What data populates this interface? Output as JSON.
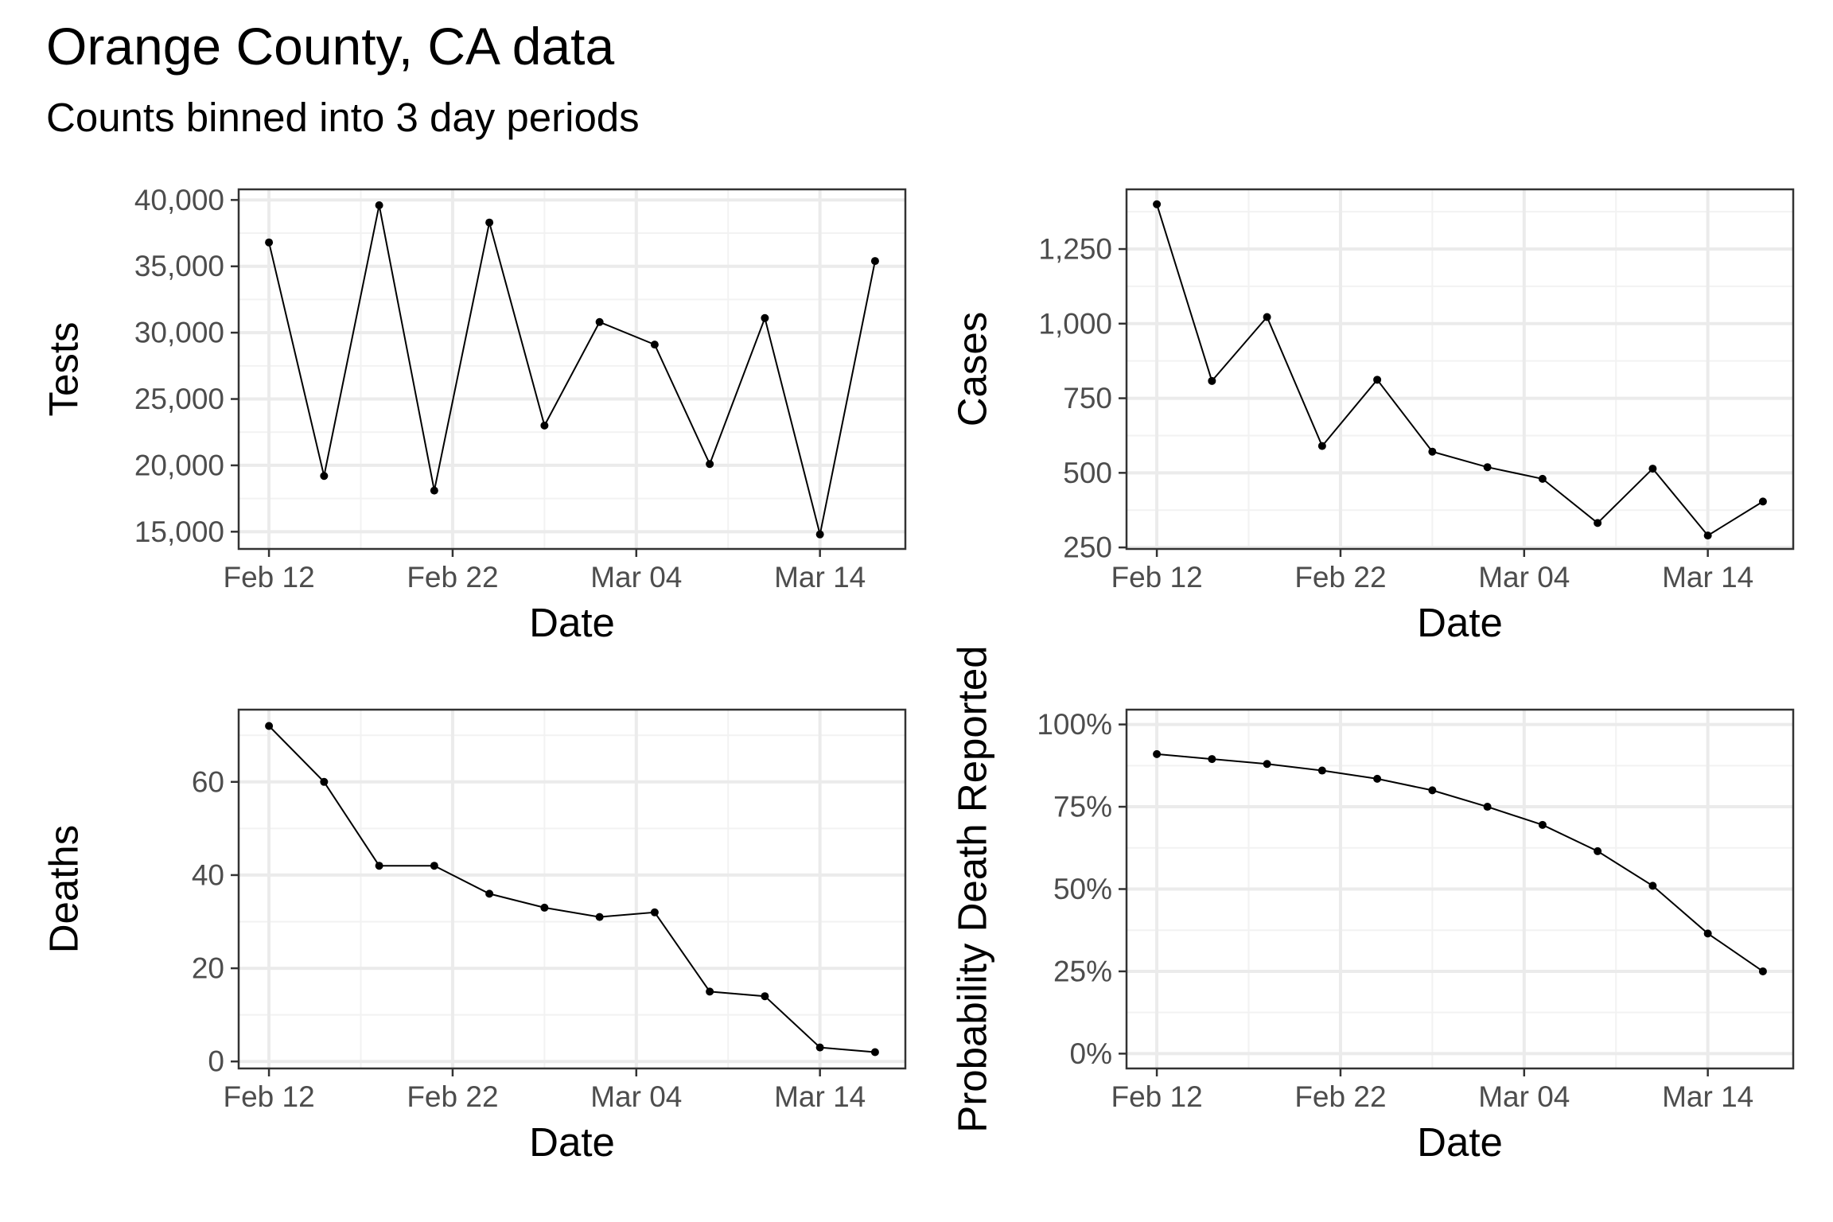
{
  "title": "Orange County, CA data",
  "subtitle": "Counts binned into 3 day periods",
  "chart_data": [
    {
      "type": "line",
      "xlabel": "Date",
      "ylabel": "Tests",
      "x": [
        "2021-02-12",
        "2021-02-15",
        "2021-02-18",
        "2021-02-21",
        "2021-02-24",
        "2021-02-27",
        "2021-03-02",
        "2021-03-05",
        "2021-03-08",
        "2021-03-11",
        "2021-03-14",
        "2021-03-17"
      ],
      "values": [
        36800,
        19200,
        39600,
        18100,
        38300,
        23000,
        30800,
        29100,
        20100,
        31100,
        14800,
        35400
      ],
      "ylim": [
        13700,
        40800
      ],
      "y_ticks": [
        15000,
        20000,
        25000,
        30000,
        35000,
        40000
      ],
      "y_tick_labels": [
        "15,000",
        "20,000",
        "25,000",
        "30,000",
        "35,000",
        "40,000"
      ],
      "x_ticks": [
        "2021-02-12",
        "2021-02-22",
        "2021-03-04",
        "2021-03-14"
      ],
      "x_tick_labels": [
        "Feb 12",
        "Feb 22",
        "Mar 04",
        "Mar 14"
      ],
      "grid": true
    },
    {
      "type": "line",
      "xlabel": "Date",
      "ylabel": "Cases",
      "x": [
        "2021-02-12",
        "2021-02-15",
        "2021-02-18",
        "2021-02-21",
        "2021-02-24",
        "2021-02-27",
        "2021-03-02",
        "2021-03-05",
        "2021-03-08",
        "2021-03-11",
        "2021-03-14",
        "2021-03-17"
      ],
      "values": [
        1400,
        808,
        1022,
        590,
        812,
        571,
        519,
        480,
        332,
        514,
        290,
        404
      ],
      "ylim": [
        245,
        1450
      ],
      "y_ticks": [
        250,
        500,
        750,
        1000,
        1250
      ],
      "y_tick_labels": [
        "250",
        "500",
        "750",
        "1,000",
        "1,250"
      ],
      "x_ticks": [
        "2021-02-12",
        "2021-02-22",
        "2021-03-04",
        "2021-03-14"
      ],
      "x_tick_labels": [
        "Feb 12",
        "Feb 22",
        "Mar 04",
        "Mar 14"
      ],
      "grid": true
    },
    {
      "type": "line",
      "xlabel": "Date",
      "ylabel": "Deaths",
      "x": [
        "2021-02-12",
        "2021-02-15",
        "2021-02-18",
        "2021-02-21",
        "2021-02-24",
        "2021-02-27",
        "2021-03-02",
        "2021-03-05",
        "2021-03-08",
        "2021-03-11",
        "2021-03-14",
        "2021-03-17"
      ],
      "values": [
        72,
        60,
        42,
        42,
        36,
        33,
        31,
        32,
        15,
        14,
        3,
        2
      ],
      "ylim": [
        -1.5,
        75.5
      ],
      "y_ticks": [
        0,
        20,
        40,
        60
      ],
      "y_tick_labels": [
        "0",
        "20",
        "40",
        "60"
      ],
      "x_ticks": [
        "2021-02-12",
        "2021-02-22",
        "2021-03-04",
        "2021-03-14"
      ],
      "x_tick_labels": [
        "Feb 12",
        "Feb 22",
        "Mar 04",
        "Mar 14"
      ],
      "grid": true
    },
    {
      "type": "line",
      "xlabel": "Date",
      "ylabel": "Probability Death Reported",
      "x": [
        "2021-02-12",
        "2021-02-15",
        "2021-02-18",
        "2021-02-21",
        "2021-02-24",
        "2021-02-27",
        "2021-03-02",
        "2021-03-05",
        "2021-03-08",
        "2021-03-11",
        "2021-03-14",
        "2021-03-17"
      ],
      "values": [
        0.91,
        0.895,
        0.88,
        0.86,
        0.835,
        0.8,
        0.75,
        0.695,
        0.615,
        0.51,
        0.365,
        0.25
      ],
      "ylim": [
        -0.045,
        1.045
      ],
      "y_ticks": [
        0,
        0.25,
        0.5,
        0.75,
        1.0
      ],
      "y_tick_labels": [
        "0%",
        "25%",
        "50%",
        "75%",
        "100%"
      ],
      "x_ticks": [
        "2021-02-12",
        "2021-02-22",
        "2021-03-04",
        "2021-03-14"
      ],
      "x_tick_labels": [
        "Feb 12",
        "Feb 22",
        "Mar 04",
        "Mar 14"
      ],
      "grid": true
    }
  ],
  "colors": {
    "line": "#000000",
    "panel_border": "#333333",
    "grid_major": "#ebebeb",
    "grid_minor": "#f2f2f2",
    "tick_text": "#4d4d4d"
  }
}
